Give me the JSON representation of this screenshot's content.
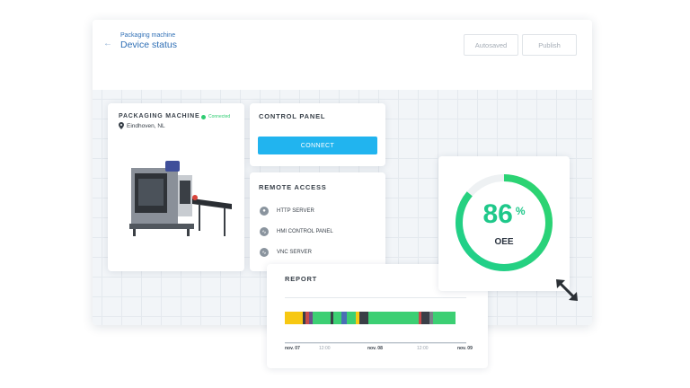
{
  "header": {
    "subtitle": "Packaging machine",
    "title": "Device status",
    "autosaved_label": "Autosaved",
    "publish_label": "Publish"
  },
  "machine": {
    "title": "PACKAGING MACHINE",
    "status": "Connected",
    "location": "Eindhoven, NL"
  },
  "control_panel": {
    "title": "CONTROL PANEL",
    "connect_label": "CONNECT"
  },
  "remote_access": {
    "title": "REMOTE ACCESS",
    "items": [
      {
        "label": "HTTP SERVER",
        "icon": "globe-icon"
      },
      {
        "label": "HMI CONTROL PANEL",
        "icon": "cast-icon"
      },
      {
        "label": "VNC SERVER",
        "icon": "cast-icon"
      }
    ]
  },
  "oee": {
    "value": "86",
    "unit": "%",
    "label": "OEE",
    "fraction": 0.86
  },
  "report": {
    "title": "REPORT",
    "ticks": [
      "nov. 07",
      "12:00",
      "nov. 08",
      "12:00",
      "nov. 09"
    ],
    "segments": [
      {
        "len": 0.1,
        "color": "#f7c812"
      },
      {
        "len": 0.015,
        "color": "#3a3f47"
      },
      {
        "len": 0.02,
        "color": "#c74b4b"
      },
      {
        "len": 0.02,
        "color": "#6b4f8c"
      },
      {
        "len": 0.1,
        "color": "#3ccf73"
      },
      {
        "len": 0.015,
        "color": "#3a3f47"
      },
      {
        "len": 0.04,
        "color": "#3ccf73"
      },
      {
        "len": 0.03,
        "color": "#4a6fb5"
      },
      {
        "len": 0.05,
        "color": "#3ccf73"
      },
      {
        "len": 0.02,
        "color": "#f7c812"
      },
      {
        "len": 0.05,
        "color": "#3a3f47"
      },
      {
        "len": 0.28,
        "color": "#3ccf73"
      },
      {
        "len": 0.015,
        "color": "#c74b4b"
      },
      {
        "len": 0.045,
        "color": "#3a3f47"
      },
      {
        "len": 0.02,
        "color": "#7a8088"
      },
      {
        "len": 0.12,
        "color": "#3ccf73"
      }
    ]
  },
  "colors": {
    "accent_blue": "#21b4ef",
    "status_green": "#2ecc71",
    "gauge_start": "#1fcf8d",
    "gauge_end": "#2ed46d"
  }
}
